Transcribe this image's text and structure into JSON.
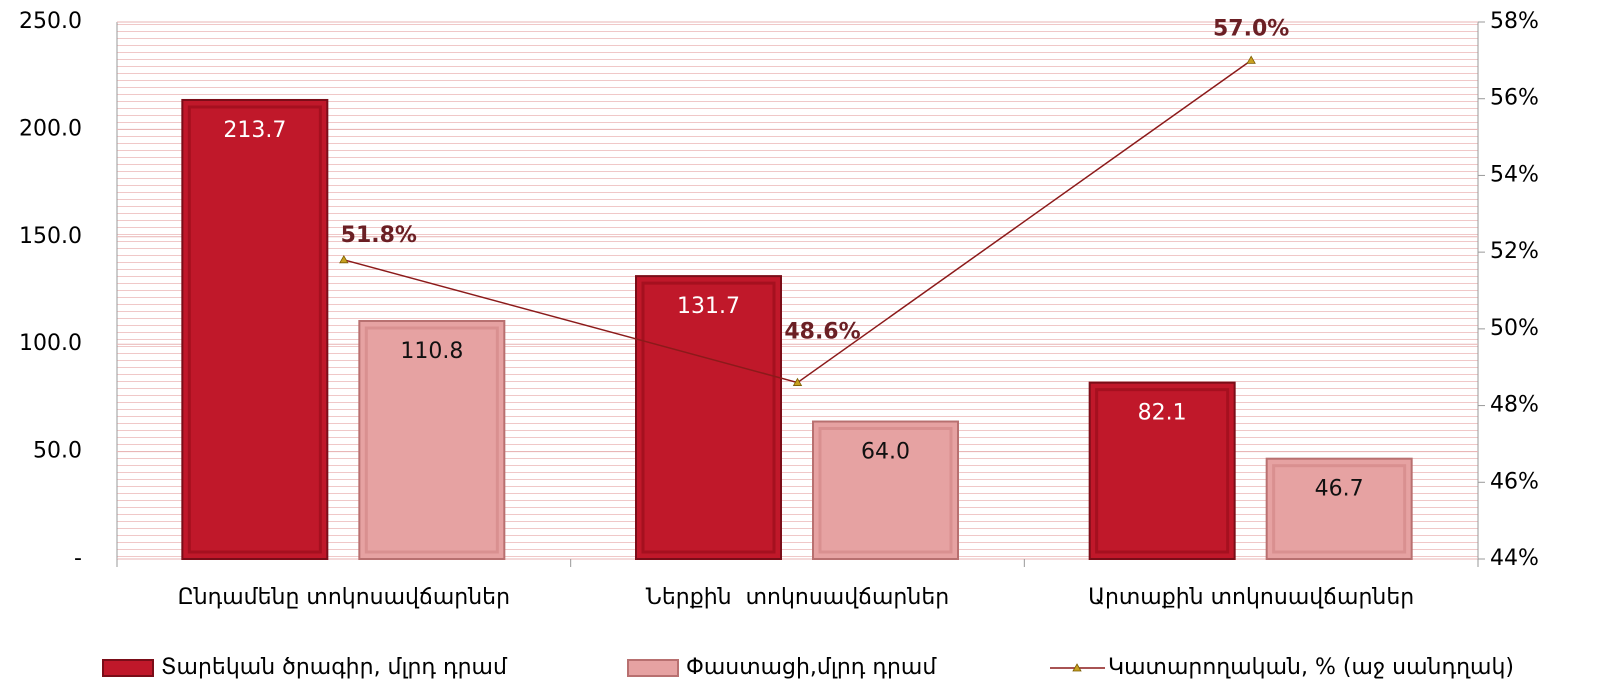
{
  "chart_data": {
    "type": "bar",
    "categories": [
      "Ընդամենը տոկոսավճարներ",
      "Ներքին  տոկոսավճարներ",
      "Արտաքին տոկոսավճարներ"
    ],
    "series": [
      {
        "name": "Տարեկան ծրագիր, մլրդ դրամ",
        "color": "#c0182a",
        "values": [
          213.7,
          131.7,
          82.1
        ],
        "value_labels": [
          "213.7",
          "131.7",
          "82.1"
        ]
      },
      {
        "name": "Փաստացի,մլրդ դրամ",
        "color": "#e6a2a2",
        "values": [
          110.8,
          64.0,
          46.7
        ],
        "value_labels": [
          "110.8",
          "64.0",
          "46.7"
        ]
      },
      {
        "name": "Կատարողական, % (աջ սանդղակ)",
        "type": "line",
        "axis": "y2",
        "color": "#8b1a1a",
        "values": [
          51.8,
          48.6,
          57.0
        ],
        "value_labels": [
          "51.8%",
          "48.6%",
          "57.0%"
        ]
      }
    ],
    "ylim": [
      0,
      250
    ],
    "yticks": [
      {
        "value": 0,
        "label": "-"
      },
      {
        "value": 50,
        "label": "50.0"
      },
      {
        "value": 100,
        "label": "100.0"
      },
      {
        "value": 150,
        "label": "150.0"
      },
      {
        "value": 200,
        "label": "200.0"
      },
      {
        "value": 250,
        "label": "250.0"
      }
    ],
    "y2lim": [
      44,
      58
    ],
    "y2ticks": [
      {
        "value": 44,
        "label": "44%"
      },
      {
        "value": 46,
        "label": "46%"
      },
      {
        "value": 48,
        "label": "48%"
      },
      {
        "value": 50,
        "label": "50%"
      },
      {
        "value": 52,
        "label": "52%"
      },
      {
        "value": 54,
        "label": "54%"
      },
      {
        "value": 56,
        "label": "56%"
      },
      {
        "value": 58,
        "label": "58%"
      }
    ],
    "grid": true,
    "legend": "bottom"
  }
}
